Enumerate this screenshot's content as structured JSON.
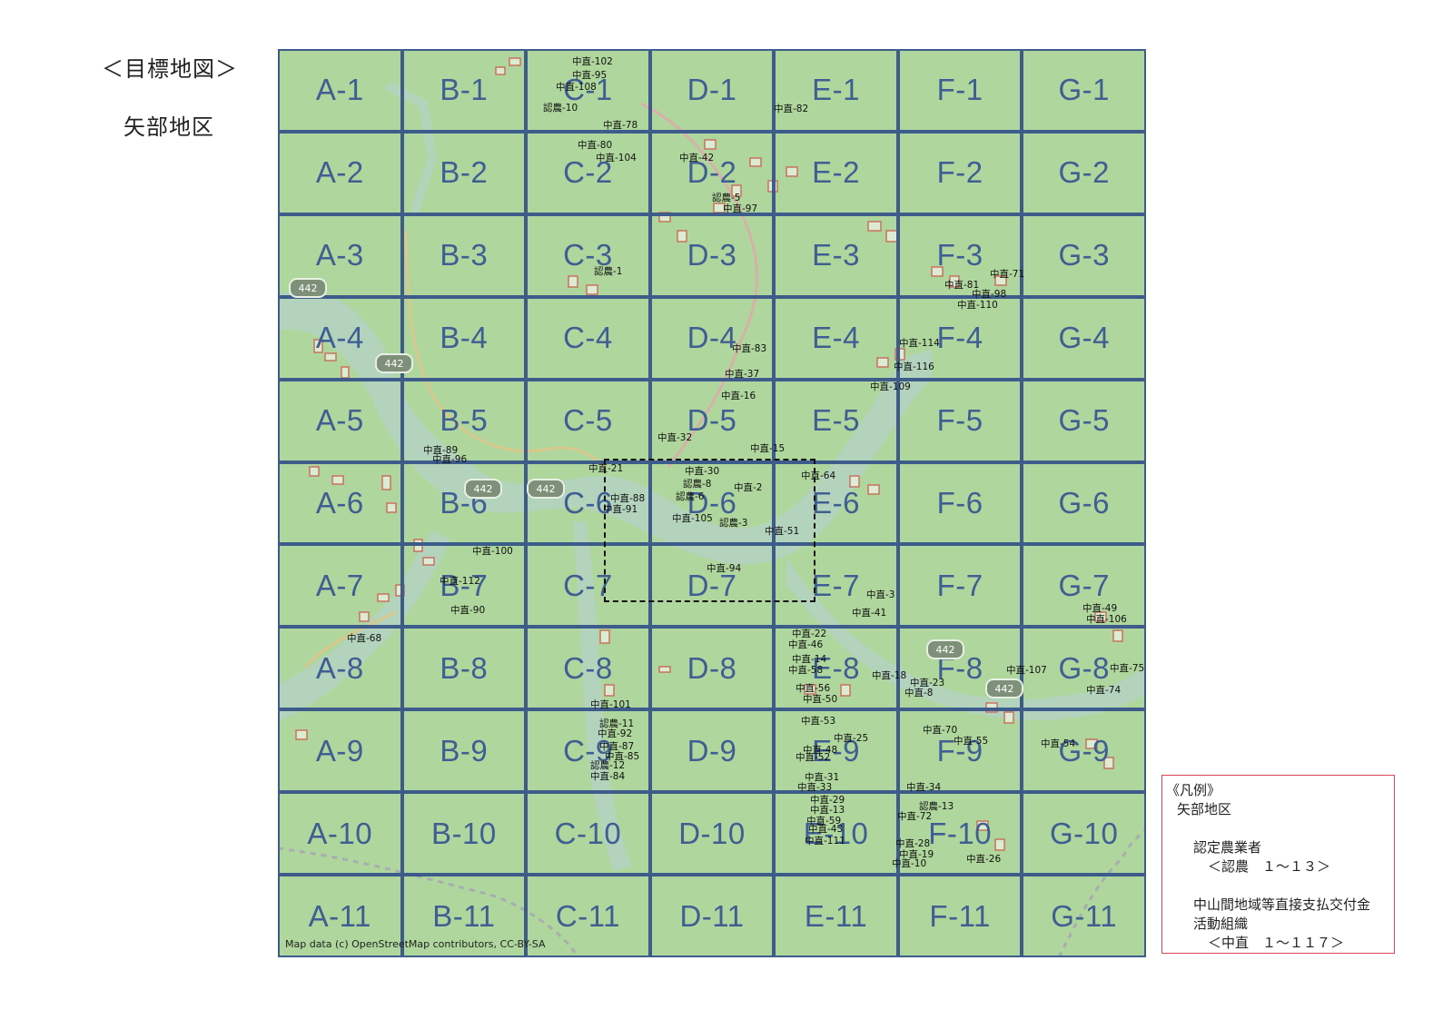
{
  "header": {
    "title": "＜目標地図＞",
    "district": "矢部地区"
  },
  "map": {
    "grid": [
      [
        "A-1",
        "B-1",
        "C-1",
        "D-1",
        "E-1",
        "F-1",
        "G-1"
      ],
      [
        "A-2",
        "B-2",
        "C-2",
        "D-2",
        "E-2",
        "F-2",
        "G-2"
      ],
      [
        "A-3",
        "B-3",
        "C-3",
        "D-3",
        "E-3",
        "F-3",
        "G-3"
      ],
      [
        "A-4",
        "B-4",
        "C-4",
        "D-4",
        "E-4",
        "F-4",
        "G-4"
      ],
      [
        "A-5",
        "B-5",
        "C-5",
        "D-5",
        "E-5",
        "F-5",
        "G-5"
      ],
      [
        "A-6",
        "B-6",
        "C-6",
        "D-6",
        "E-6",
        "F-6",
        "G-6"
      ],
      [
        "A-7",
        "B-7",
        "C-7",
        "D-7",
        "E-7",
        "F-7",
        "G-7"
      ],
      [
        "A-8",
        "B-8",
        "C-8",
        "D-8",
        "E-8",
        "F-8",
        "G-8"
      ],
      [
        "A-9",
        "B-9",
        "C-9",
        "D-9",
        "E-9",
        "F-9",
        "G-9"
      ],
      [
        "A-10",
        "B-10",
        "C-10",
        "D-10",
        "E-10",
        "F-10",
        "G-10"
      ],
      [
        "A-11",
        "B-11",
        "C-11",
        "D-11",
        "E-11",
        "F-11",
        "G-11"
      ]
    ],
    "road_number": "442",
    "attribution": "Map data (c) OpenStreetMap contributors, CC-BY-SA",
    "annotations": [
      "中直-102",
      "中直-95",
      "中直-108",
      "認農-10",
      "中直-78",
      "中直-80",
      "中直-104",
      "中直-42",
      "認農-5",
      "中直-97",
      "中直-82",
      "認農-1",
      "中直-71",
      "中直-81",
      "中直-98",
      "中直-110",
      "中直-83",
      "中直-37",
      "中直-16",
      "中直-114",
      "中直-116",
      "中直-109",
      "中直-32",
      "中直-15",
      "中直-89",
      "中直-96",
      "中直-21",
      "中直-30",
      "認農-8",
      "中直-2",
      "中直-64",
      "認農-6",
      "中直-88",
      "中直-91",
      "中直-105",
      "認農-3",
      "中直-51",
      "中直-100",
      "中直-112",
      "中直-90",
      "中直-94",
      "中直-3",
      "中直-41",
      "中直-68",
      "中直-22",
      "中直-46",
      "中直-14",
      "中直-58",
      "中直-56",
      "中直-50",
      "中直-18",
      "中直-23",
      "中直-8",
      "中直-107",
      "中直-49",
      "中直-106",
      "中直-74",
      "中直-75",
      "中直-101",
      "認農-11",
      "中直-92",
      "中直-87",
      "中直-85",
      "認農-12",
      "中直-84",
      "中直-53",
      "中直-25",
      "中直-48",
      "中直-52",
      "中直-31",
      "中直-33",
      "中直-70",
      "中直-55",
      "中直-54",
      "中直-34",
      "認農-13",
      "中直-29",
      "中直-13",
      "中直-59",
      "中直-43",
      "中直-111",
      "中直-72",
      "中直-28",
      "中直-19",
      "中直-10",
      "中直-26"
    ]
  },
  "legend": {
    "title": "《凡例》",
    "district": "矢部地区",
    "group1_name": "認定農業者",
    "group1_range": "＜認農　１～１３＞",
    "group2_name_line1": "中山間地域等直接支払交付金",
    "group2_name_line2": "活動組織",
    "group2_range": "＜中直　１～１１７＞"
  },
  "colors": {
    "grid_line": "#3d5c8c",
    "map_green": "#b3d9a0",
    "river": "#b8d4dc",
    "parcel_red": "#e0303a",
    "legend_border": "#d9475a"
  }
}
